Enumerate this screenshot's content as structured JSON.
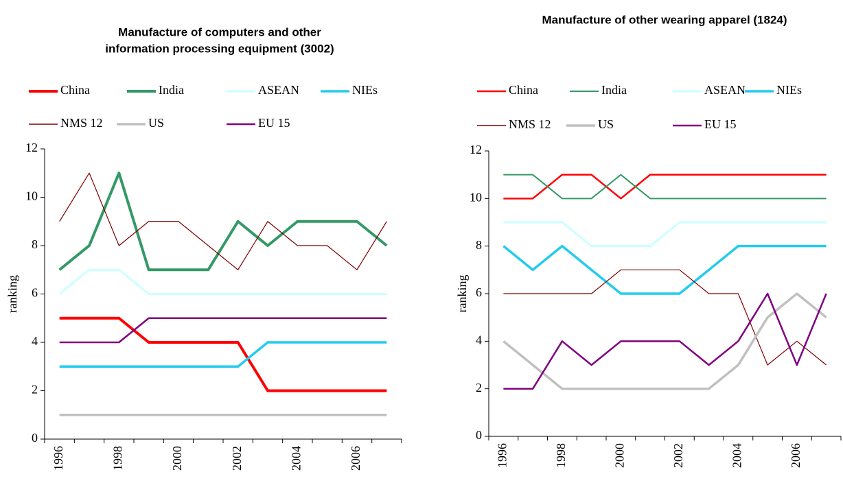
{
  "chart_data": [
    {
      "type": "line",
      "title": "Manufacture of computers and other information processing equipment (3002)",
      "title_lines": [
        "Manufacture of computers and other",
        "information processing equipment (3002)"
      ],
      "y_label": "ranking",
      "categories": [
        "1996",
        null,
        "1998",
        null,
        "2000",
        null,
        "2002",
        null,
        "2004",
        null,
        "2006",
        null
      ],
      "ylim": [
        0,
        12
      ],
      "yticks": [
        0,
        2,
        4,
        6,
        8,
        10,
        12
      ],
      "grid": false,
      "legend": "top",
      "series": [
        {
          "name": "China",
          "color": "#ff0000",
          "line_width": 4,
          "values": [
            5,
            5,
            5,
            4,
            4,
            4,
            4,
            2,
            2,
            2,
            2,
            2
          ]
        },
        {
          "name": "India",
          "color": "#339966",
          "line_width": 4,
          "values": [
            7,
            8,
            11,
            7,
            7,
            7,
            9,
            8,
            9,
            9,
            9,
            8
          ]
        },
        {
          "name": "ASEAN",
          "color": "#ccffff",
          "line_width": 3,
          "values": [
            6,
            7,
            7,
            6,
            6,
            6,
            6,
            6,
            6,
            6,
            6,
            6
          ]
        },
        {
          "name": "NIEs",
          "color": "#22ccee",
          "line_width": 3.5,
          "values": [
            3,
            3,
            3,
            3,
            3,
            3,
            3,
            4,
            4,
            4,
            4,
            4
          ]
        },
        {
          "name": "NMS 12",
          "color": "#800000",
          "line_width": 1.2,
          "values": [
            9,
            11,
            8,
            9,
            9,
            8,
            7,
            9,
            8,
            8,
            7,
            9
          ]
        },
        {
          "name": "US",
          "color": "#c0c0c0",
          "line_width": 3.5,
          "values": [
            1,
            1,
            1,
            1,
            1,
            1,
            1,
            1,
            1,
            1,
            1,
            1
          ]
        },
        {
          "name": "EU 15",
          "color": "#800080",
          "line_width": 2.5,
          "values": [
            4,
            4,
            4,
            5,
            5,
            5,
            5,
            5,
            5,
            5,
            5,
            5
          ]
        }
      ]
    },
    {
      "type": "line",
      "title": "Manufacture of other wearing apparel (1824)",
      "title_lines": [
        "Manufacture of other wearing apparel (1824)"
      ],
      "y_label": "ranking",
      "categories": [
        "1996",
        null,
        "1998",
        null,
        "2000",
        null,
        "2002",
        null,
        "2004",
        null,
        "2006",
        null
      ],
      "ylim": [
        0,
        12
      ],
      "yticks": [
        0,
        2,
        4,
        6,
        8,
        10,
        12
      ],
      "grid": false,
      "legend": "top",
      "series": [
        {
          "name": "China",
          "color": "#ff0000",
          "line_width": 2.5,
          "values": [
            10,
            10,
            11,
            11,
            10,
            11,
            11,
            11,
            11,
            11,
            11,
            11
          ]
        },
        {
          "name": "India",
          "color": "#339966",
          "line_width": 2,
          "values": [
            11,
            11,
            10,
            10,
            11,
            10,
            10,
            10,
            10,
            10,
            10,
            10
          ]
        },
        {
          "name": "ASEAN",
          "color": "#ccffff",
          "line_width": 3,
          "values": [
            9,
            9,
            9,
            8,
            8,
            8,
            9,
            9,
            9,
            9,
            9,
            9
          ]
        },
        {
          "name": "NIEs",
          "color": "#22ccee",
          "line_width": 3.5,
          "values": [
            8,
            7,
            8,
            7,
            6,
            6,
            6,
            7,
            8,
            8,
            8,
            8
          ]
        },
        {
          "name": "NMS 12",
          "color": "#800000",
          "line_width": 1.2,
          "values": [
            6,
            6,
            6,
            6,
            7,
            7,
            7,
            6,
            6,
            3,
            4,
            3
          ]
        },
        {
          "name": "US",
          "color": "#c0c0c0",
          "line_width": 3.5,
          "values": [
            4,
            3,
            2,
            2,
            2,
            2,
            2,
            2,
            3,
            5,
            6,
            5
          ]
        },
        {
          "name": "EU 15",
          "color": "#800080",
          "line_width": 2.5,
          "values": [
            2,
            2,
            4,
            3,
            4,
            4,
            4,
            3,
            4,
            6,
            3,
            6
          ]
        }
      ]
    }
  ]
}
